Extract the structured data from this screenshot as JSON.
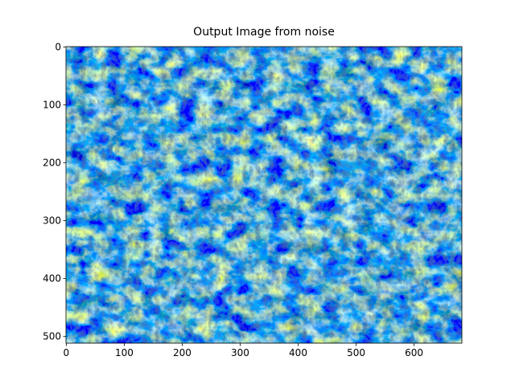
{
  "chart_data": {
    "type": "image",
    "title": "Output Image from noise",
    "xlim": [
      -0.5,
      682.5
    ],
    "ylim": [
      511.5,
      -0.5
    ],
    "xticks": [
      0,
      100,
      200,
      300,
      400,
      500,
      600
    ],
    "yticks": [
      0,
      100,
      200,
      300,
      400,
      500
    ]
  }
}
